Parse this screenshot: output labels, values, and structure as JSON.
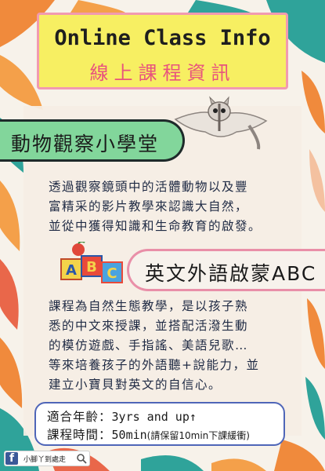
{
  "poster": {
    "title_en": "Online Class Info",
    "title_zh": "線上課程資訊"
  },
  "section1": {
    "heading": "動物觀察小學堂",
    "lines": [
      "透過觀察鏡頭中的活體動物以及豐",
      "富精采的影片教學來認識大自然，",
      "並從中獲得知識和生命教育的啟發。"
    ]
  },
  "section2": {
    "heading": "英文外語啟蒙ABC",
    "lines": [
      "課程為自然生態教學，是以孩子熟",
      "悉的中文來授課，並搭配活潑生動",
      "的模仿遊戲、手指謠、美語兒歌…",
      "等來培養孩子的外語聽+說能力，並",
      "建立小寶貝對英文的自信心。"
    ]
  },
  "info": {
    "age_label": "適合年齡：",
    "age_value": "3yrs and up↑",
    "time_label": "課程時間：",
    "time_value": "50min",
    "time_note": "(請保留10min下課緩衝)"
  },
  "footer": {
    "facebook_name": "小腳丫到處走"
  },
  "colors": {
    "title_box": "#f7ef62",
    "title_border": "#f19ab0",
    "title_zh": "#e8547d",
    "banner1": "#82d69b",
    "banner2_border": "#e98fa8",
    "info_border": "#4f66b8",
    "leaf_orange": "#f08a3c",
    "leaf_teal": "#2fa39a"
  }
}
